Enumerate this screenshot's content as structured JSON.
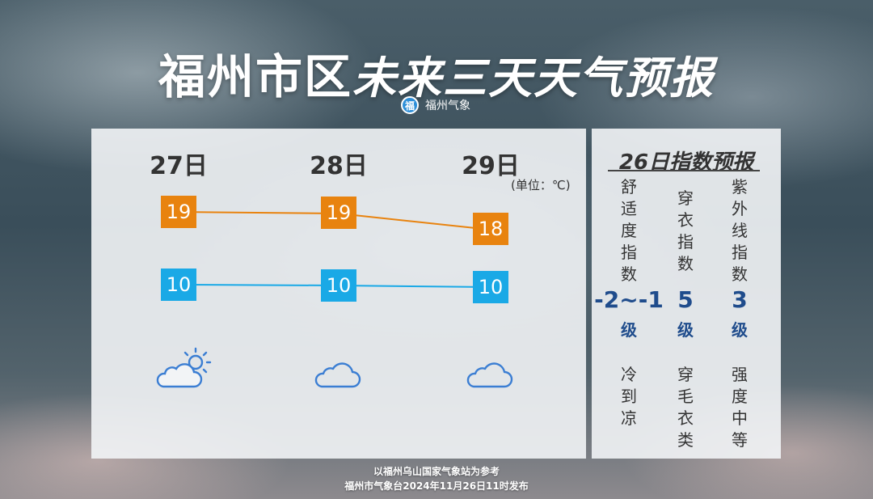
{
  "header": {
    "title_city": "福州市区",
    "title_main": "未来三天天气预报",
    "brand": "福州气象",
    "brand_logo_char": "福"
  },
  "forecast": {
    "unit": "(单位：℃)",
    "days": [
      {
        "label": "27日",
        "high": 19,
        "low": 10,
        "icon": "partly-sunny-icon"
      },
      {
        "label": "28日",
        "high": 19,
        "low": 10,
        "icon": "cloudy-icon"
      },
      {
        "label": "29日",
        "high": 18,
        "low": 10,
        "icon": "cloudy-icon"
      }
    ],
    "high_color": "#e8830f",
    "low_color": "#1aa9e6"
  },
  "index": {
    "title": "26日指数预报",
    "items": [
      {
        "name": "舒适度指数",
        "value": "-2~-1",
        "level": "级",
        "desc": "冷到凉"
      },
      {
        "name": "穿衣指数",
        "value": "5",
        "level": "级",
        "desc": "穿毛衣类"
      },
      {
        "name": "紫外线指数",
        "value": "3",
        "level": "级",
        "desc": "强度中等"
      }
    ]
  },
  "footer": {
    "line1": "以福州乌山国家气象站为参考",
    "line2": "福州市气象台2024年11月26日11时发布"
  }
}
